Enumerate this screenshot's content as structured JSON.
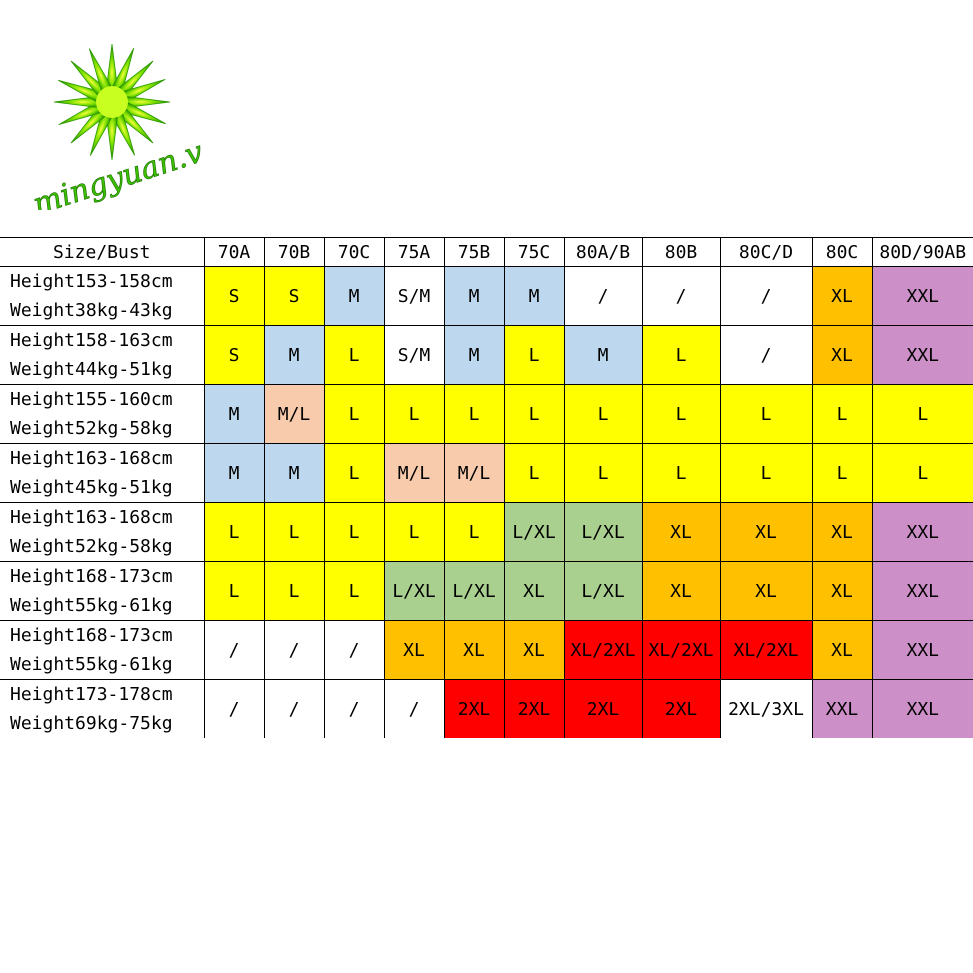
{
  "logo": {
    "text": "mingyuan.vn"
  },
  "colors": {
    "Y": "#ffff00",
    "B": "#bdd7ee",
    "W": "#ffffff",
    "O": "#ffc000",
    "P": "#cc8fc8",
    "S": "#f8cbad",
    "G": "#a9d08e",
    "R": "#ff0000"
  },
  "table": {
    "corner": "Size/Bust",
    "cols": [
      "70A",
      "70B",
      "70C",
      "75A",
      "75B",
      "75C",
      "80A/B",
      "80B",
      "80C/D",
      "80C",
      "80D/90AB"
    ],
    "rows": [
      {
        "h1": "Height153-158cm",
        "h2": "Weight38kg-43kg",
        "cells": [
          [
            "S",
            "Y"
          ],
          [
            "S",
            "Y"
          ],
          [
            "M",
            "B"
          ],
          [
            "S/M",
            "W"
          ],
          [
            "M",
            "B"
          ],
          [
            "M",
            "B"
          ],
          [
            "/",
            "W"
          ],
          [
            "/",
            "W"
          ],
          [
            "/",
            "W"
          ],
          [
            "XL",
            "O"
          ],
          [
            "XXL",
            "P"
          ]
        ]
      },
      {
        "h1": "Height158-163cm",
        "h2": "Weight44kg-51kg",
        "cells": [
          [
            "S",
            "Y"
          ],
          [
            "M",
            "B"
          ],
          [
            "L",
            "Y"
          ],
          [
            "S/M",
            "W"
          ],
          [
            "M",
            "B"
          ],
          [
            "L",
            "Y"
          ],
          [
            "M",
            "B"
          ],
          [
            "L",
            "Y"
          ],
          [
            "/",
            "W"
          ],
          [
            "XL",
            "O"
          ],
          [
            "XXL",
            "P"
          ]
        ]
      },
      {
        "h1": "Height155-160cm",
        "h2": "Weight52kg-58kg",
        "cells": [
          [
            "M",
            "B"
          ],
          [
            "M/L",
            "S"
          ],
          [
            "L",
            "Y"
          ],
          [
            "L",
            "Y"
          ],
          [
            "L",
            "Y"
          ],
          [
            "L",
            "Y"
          ],
          [
            "L",
            "Y"
          ],
          [
            "L",
            "Y"
          ],
          [
            "L",
            "Y"
          ],
          [
            "L",
            "Y"
          ],
          [
            "L",
            "Y"
          ]
        ]
      },
      {
        "h1": "Height163-168cm",
        "h2": "Weight45kg-51kg",
        "cells": [
          [
            "M",
            "B"
          ],
          [
            "M",
            "B"
          ],
          [
            "L",
            "Y"
          ],
          [
            "M/L",
            "S"
          ],
          [
            "M/L",
            "S"
          ],
          [
            "L",
            "Y"
          ],
          [
            "L",
            "Y"
          ],
          [
            "L",
            "Y"
          ],
          [
            "L",
            "Y"
          ],
          [
            "L",
            "Y"
          ],
          [
            "L",
            "Y"
          ]
        ]
      },
      {
        "h1": "Height163-168cm",
        "h2": "Weight52kg-58kg",
        "cells": [
          [
            "L",
            "Y"
          ],
          [
            "L",
            "Y"
          ],
          [
            "L",
            "Y"
          ],
          [
            "L",
            "Y"
          ],
          [
            "L",
            "Y"
          ],
          [
            "L/XL",
            "G"
          ],
          [
            "L/XL",
            "G"
          ],
          [
            "XL",
            "O"
          ],
          [
            "XL",
            "O"
          ],
          [
            "XL",
            "O"
          ],
          [
            "XXL",
            "P"
          ]
        ]
      },
      {
        "h1": "Height168-173cm",
        "h2": "Weight55kg-61kg",
        "cells": [
          [
            "L",
            "Y"
          ],
          [
            "L",
            "Y"
          ],
          [
            "L",
            "Y"
          ],
          [
            "L/XL",
            "G"
          ],
          [
            "L/XL",
            "G"
          ],
          [
            "XL",
            "G"
          ],
          [
            "L/XL",
            "G"
          ],
          [
            "XL",
            "O"
          ],
          [
            "XL",
            "O"
          ],
          [
            "XL",
            "O"
          ],
          [
            "XXL",
            "P"
          ]
        ]
      },
      {
        "h1": "Height168-173cm",
        "h2": "Weight55kg-61kg",
        "cells": [
          [
            "/",
            "W"
          ],
          [
            "/",
            "W"
          ],
          [
            "/",
            "W"
          ],
          [
            "XL",
            "O"
          ],
          [
            "XL",
            "O"
          ],
          [
            "XL",
            "O"
          ],
          [
            "XL/2XL",
            "R"
          ],
          [
            "XL/2XL",
            "R"
          ],
          [
            "XL/2XL",
            "R"
          ],
          [
            "XL",
            "O"
          ],
          [
            "XXL",
            "P"
          ]
        ]
      },
      {
        "h1": "Height173-178cm",
        "h2": "Weight69kg-75kg",
        "cells": [
          [
            "/",
            "W"
          ],
          [
            "/",
            "W"
          ],
          [
            "/",
            "W"
          ],
          [
            "/",
            "W"
          ],
          [
            "2XL",
            "R"
          ],
          [
            "2XL",
            "R"
          ],
          [
            "2XL",
            "R"
          ],
          [
            "2XL",
            "R"
          ],
          [
            "2XL/3XL",
            "W"
          ],
          [
            "XXL",
            "P"
          ],
          [
            "XXL",
            "P"
          ]
        ]
      }
    ]
  }
}
